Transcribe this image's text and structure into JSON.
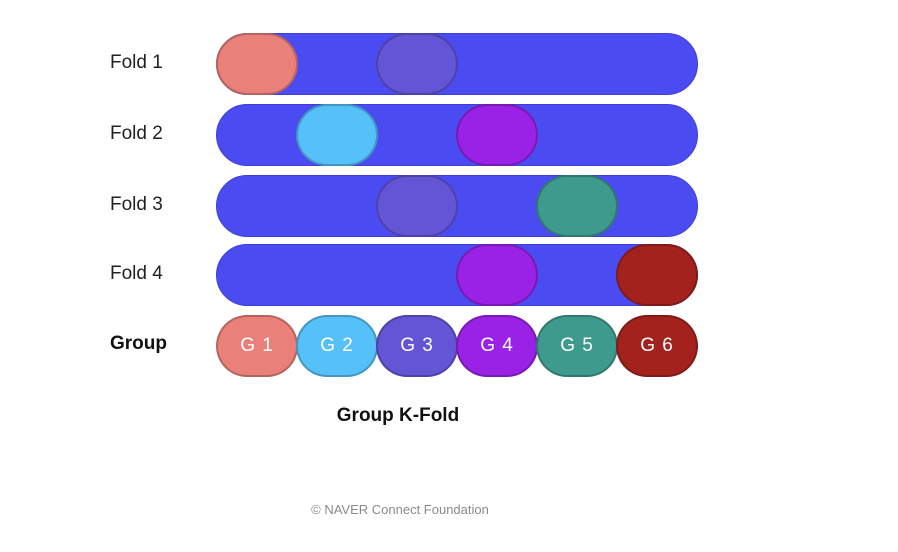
{
  "diagram": {
    "title": "Group K-Fold",
    "footer": "©  NAVER Connect Foundation",
    "group_row_label": "Group",
    "track_color": "#4b4bf2",
    "groups": [
      {
        "label": "G 1",
        "color": "#e9807a"
      },
      {
        "label": "G 2",
        "color": "#56c0f8"
      },
      {
        "label": "G 3",
        "color": "#6455d6"
      },
      {
        "label": "G 4",
        "color": "#9a22e6"
      },
      {
        "label": "G 5",
        "color": "#3f9a8e"
      },
      {
        "label": "G 6",
        "color": "#a3221e"
      }
    ],
    "folds": [
      {
        "label": "Fold 1",
        "highlighted_groups": [
          1,
          3
        ]
      },
      {
        "label": "Fold 2",
        "highlighted_groups": [
          2,
          4
        ]
      },
      {
        "label": "Fold 3",
        "highlighted_groups": [
          3,
          5
        ]
      },
      {
        "label": "Fold 4",
        "highlighted_groups": [
          4,
          6
        ]
      }
    ]
  }
}
